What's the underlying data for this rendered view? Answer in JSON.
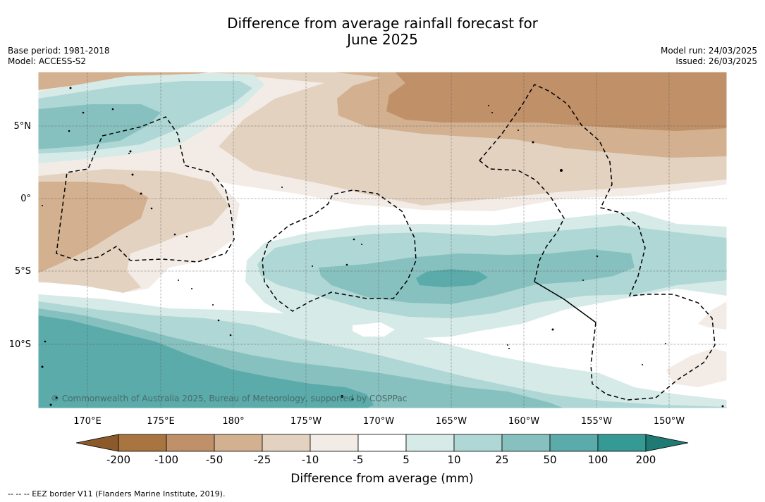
{
  "header": {
    "title_line1": "Difference from average rainfall forecast for",
    "title_line2": "June 2025",
    "base_period": "Base period: 1981-2018",
    "model": "Model: ACCESS-S2",
    "model_run": "Model run: 24/03/2025",
    "issued": "Issued: 26/03/2025"
  },
  "map": {
    "lat_labels": [
      "5°N",
      "0°",
      "5°S",
      "10°S"
    ],
    "lon_labels": [
      "170°E",
      "175°E",
      "180°",
      "175°W",
      "170°W",
      "165°W",
      "160°W",
      "155°W",
      "150°W"
    ],
    "copyright": "© Commonwealth of Australia 2025, Bureau of Meteorology, supported by COSPPac"
  },
  "legend": {
    "title": "Difference from average (mm)",
    "ticks": [
      "-200",
      "-100",
      "-50",
      "-25",
      "-10",
      "-5",
      "5",
      "10",
      "25",
      "50",
      "100",
      "200"
    ],
    "colors": [
      "#8c5a2a",
      "#a87440",
      "#c09068",
      "#d2b090",
      "#e3d2c0",
      "#f3ece6",
      "#ffffff",
      "#d6eae8",
      "#afd7d5",
      "#87c1bf",
      "#5aabaa",
      "#359994",
      "#1f7a74"
    ]
  },
  "footnote": "--  --  -- EEZ border V11 (Flanders Marine Institute, 2019)."
}
